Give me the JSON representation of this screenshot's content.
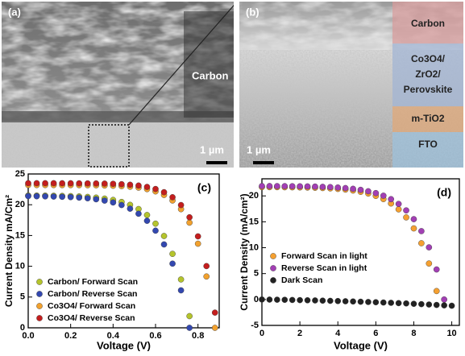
{
  "images": [
    {
      "label": "(a)",
      "annotations": [
        "Carbon"
      ],
      "scale_bar": "1 µm"
    },
    {
      "label": "(b)",
      "layers": [
        {
          "lines": [
            "Carbon"
          ]
        },
        {
          "lines": [
            "Co3O4/",
            "ZrO2/",
            "Perovskite"
          ]
        },
        {
          "lines": [
            "m-TiO2"
          ]
        },
        {
          "lines": [
            "FTO"
          ]
        }
      ],
      "scale_bar": "1 µm"
    }
  ],
  "chart_data": [
    {
      "type": "scatter",
      "annotation": "(c)",
      "xlabel": "Voltage (V)",
      "ylabel": "Current Density mA/Cm²",
      "x": [
        0,
        0.04,
        0.08,
        0.12,
        0.16,
        0.2,
        0.24,
        0.28,
        0.32,
        0.36,
        0.4,
        0.44,
        0.48,
        0.52,
        0.56,
        0.6,
        0.64,
        0.68,
        0.72,
        0.76,
        0.8,
        0.84,
        0.88
      ],
      "xlim": [
        0,
        0.9
      ],
      "xticks": [
        {
          "value": 0,
          "label": "0.0"
        },
        0.2,
        0.4,
        0.6,
        0.8
      ],
      "ylim": [
        0,
        25
      ],
      "yticks": [
        0,
        5,
        10,
        15,
        20,
        25
      ],
      "legend": "lower left",
      "series": [
        {
          "name": "Carbon/ Forward Scan",
          "color": "#b5c42c",
          "values": [
            21.5,
            21.49,
            21.48,
            21.46,
            21.43,
            21.4,
            21.35,
            21.27,
            21.16,
            21.0,
            20.78,
            20.45,
            19.98,
            19.3,
            18.33,
            16.93,
            14.92,
            12.02,
            7.86,
            1.9,
            null,
            null,
            null
          ]
        },
        {
          "name": "Carbon/ Reverse Scan",
          "color": "#3348b0",
          "values": [
            21.4,
            21.38,
            21.36,
            21.33,
            21.29,
            21.24,
            21.16,
            21.05,
            20.89,
            20.67,
            20.37,
            19.95,
            19.36,
            18.54,
            17.39,
            15.79,
            13.55,
            10.43,
            6.09,
            0,
            null,
            null,
            null
          ]
        },
        {
          "name": "Co3O4/ Forward Scan",
          "color": "#f2a12e",
          "values": [
            23.2,
            23.2,
            23.2,
            23.2,
            23.19,
            23.19,
            23.18,
            23.17,
            23.16,
            23.13,
            23.09,
            23.03,
            22.93,
            22.78,
            22.54,
            22.17,
            21.59,
            20.69,
            19.28,
            17.09,
            13.67,
            8.34,
            0
          ]
        },
        {
          "name": "Co3O4/ Reverse Scan",
          "color": "#c41e1e",
          "values": [
            23.5,
            23.5,
            23.5,
            23.5,
            23.49,
            23.49,
            23.48,
            23.47,
            23.46,
            23.44,
            23.4,
            23.34,
            23.25,
            23.12,
            22.9,
            22.56,
            22.04,
            21.22,
            19.95,
            17.96,
            14.86,
            10.03,
            2.47
          ]
        }
      ]
    },
    {
      "type": "scatter",
      "annotation": "(d)",
      "xlabel": "Voltage (V)",
      "ylabel": "Current Density (mA/cm²)",
      "x": [
        0,
        0.4,
        0.8,
        1.2,
        1.6,
        2,
        2.4,
        2.8,
        3.2,
        3.6,
        4,
        4.4,
        4.8,
        5.2,
        5.6,
        6,
        6.4,
        6.8,
        7.2,
        7.6,
        8,
        8.4,
        8.8,
        9.2,
        9.6,
        10
      ],
      "xlim": [
        0,
        10.4
      ],
      "xticks": [
        0,
        2,
        4,
        6,
        8,
        10
      ],
      "ylim": [
        -5,
        23.3
      ],
      "yticks": [
        -5,
        0,
        5,
        10,
        15,
        20
      ],
      "legend": "center left",
      "series": [
        {
          "name": "Forward Scan in light",
          "color": "#f5a030",
          "values": [
            21.7,
            21.69,
            21.69,
            21.67,
            21.66,
            21.64,
            21.61,
            21.57,
            21.52,
            21.45,
            21.35,
            21.22,
            21.04,
            20.79,
            20.46,
            20.0,
            19.39,
            18.54,
            17.4,
            15.85,
            13.73,
            10.86,
            6.95,
            1.63,
            null,
            null
          ]
        },
        {
          "name": "Reverse Scan in light",
          "color": "#a23fb4",
          "values": [
            21.9,
            21.9,
            21.89,
            21.88,
            21.87,
            21.85,
            21.83,
            21.8,
            21.75,
            21.7,
            21.62,
            21.51,
            21.37,
            21.17,
            20.9,
            20.54,
            20.04,
            19.37,
            18.45,
            17.2,
            15.51,
            13.2,
            10.07,
            5.8,
            0,
            null
          ]
        },
        {
          "name": "Dark Scan",
          "color": "#222222",
          "values": [
            0,
            -0.02,
            -0.04,
            -0.06,
            -0.09,
            -0.12,
            -0.15,
            -0.18,
            -0.22,
            -0.26,
            -0.3,
            -0.34,
            -0.38,
            -0.43,
            -0.48,
            -0.53,
            -0.58,
            -0.64,
            -0.7,
            -0.76,
            -0.83,
            -0.9,
            -0.97,
            -1.05,
            -1.13,
            -1.2
          ]
        }
      ]
    }
  ]
}
